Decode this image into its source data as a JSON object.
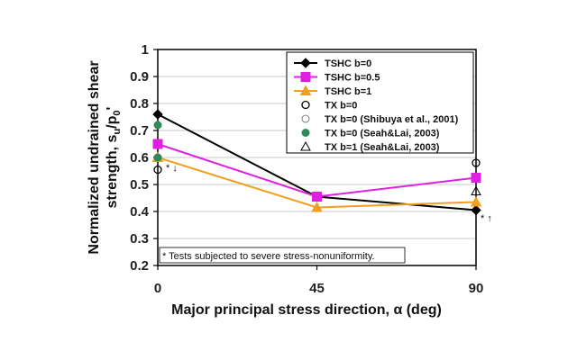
{
  "chart_data": {
    "type": "line",
    "xlabel": "Major principal stress direction, α (deg)",
    "ylabel_line1": "Normalized undrained shear",
    "ylabel_line2": "strength, s",
    "ylabel_sub": "u",
    "ylabel_mid": "/p",
    "ylabel_sub2": "0",
    "ylabel_end": "'",
    "x_ticks": [
      "0",
      "45",
      "90"
    ],
    "y_ticks": [
      "0.2",
      "0.3",
      "0.4",
      "0.5",
      "0.6",
      "0.7",
      "0.8",
      "0.9",
      "1"
    ],
    "xlim": [
      0,
      90
    ],
    "ylim": [
      0.2,
      1.0
    ],
    "grid": true,
    "legend_position": "top-right",
    "series": [
      {
        "name": "TSHC b=0",
        "color": "#000000",
        "marker": "diamond",
        "x": [
          0,
          45,
          90
        ],
        "y": [
          0.76,
          0.455,
          0.405
        ]
      },
      {
        "name": "TSHC b=0.5",
        "color": "#e020e0",
        "marker": "square",
        "x": [
          0,
          45,
          90
        ],
        "y": [
          0.65,
          0.455,
          0.525
        ]
      },
      {
        "name": "TSHC b=1",
        "color": "#f0a020",
        "marker": "triangle",
        "x": [
          0,
          45,
          90
        ],
        "y": [
          0.6,
          0.415,
          0.435
        ]
      },
      {
        "name": "TX b=0",
        "color": "#000000",
        "marker": "open-circle",
        "x": [
          0,
          90
        ],
        "y": [
          0.555,
          0.58
        ]
      },
      {
        "name": "TX b=0 (Shibuya et al., 2001)",
        "color": "#666666",
        "marker": "open-circle-thin",
        "x": [
          0
        ],
        "y": [
          0.6
        ]
      },
      {
        "name": "TX b=0 (Seah&Lai, 2003)",
        "color": "#2e8b57",
        "marker": "filled-circle",
        "x": [
          0,
          0
        ],
        "y": [
          0.72,
          0.6
        ]
      },
      {
        "name": "TX b=1 (Seah&Lai, 2003)",
        "color": "#000000",
        "marker": "open-triangle",
        "x": [
          90
        ],
        "y": [
          0.475
        ]
      }
    ],
    "annotations": [
      {
        "text": "* Tests subjected to severe stress-nonuniformity."
      },
      {
        "text": "* ↓"
      },
      {
        "text": "* ↑"
      }
    ]
  }
}
